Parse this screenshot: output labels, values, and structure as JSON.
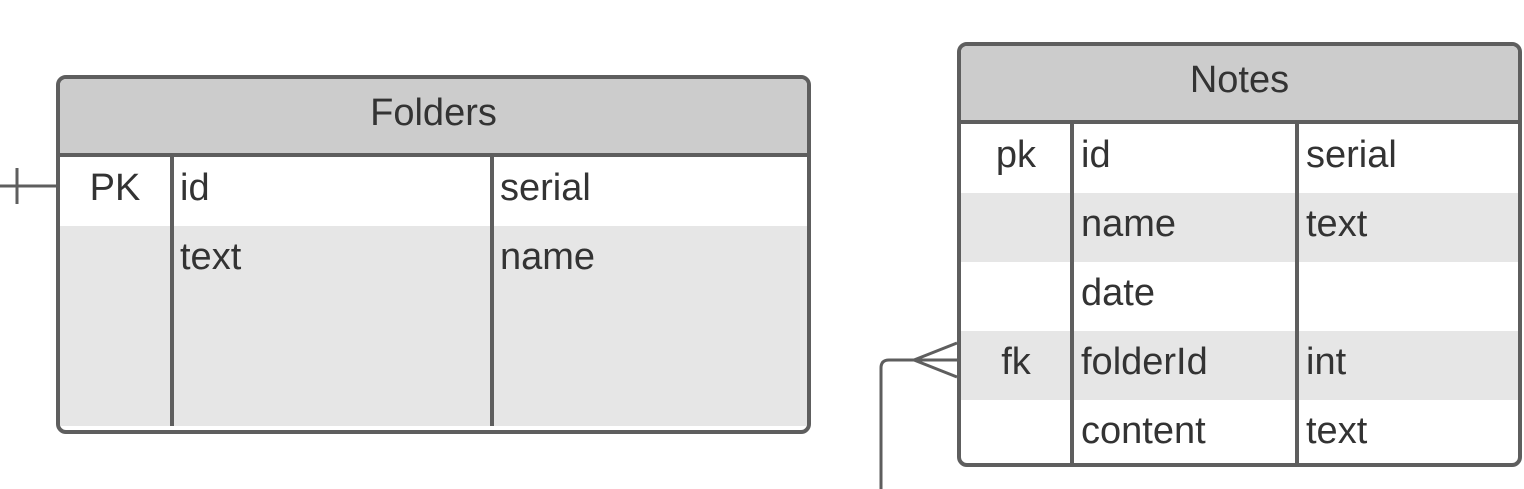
{
  "folders": {
    "title": "Folders",
    "rows": [
      {
        "key": "PK",
        "name": "id",
        "type": "serial"
      },
      {
        "key": "",
        "name": "text",
        "type": "name"
      }
    ]
  },
  "notes": {
    "title": "Notes",
    "rows": [
      {
        "key": "pk",
        "name": "id",
        "type": "serial"
      },
      {
        "key": "",
        "name": "name",
        "type": "text"
      },
      {
        "key": "",
        "name": "date",
        "type": ""
      },
      {
        "key": "fk",
        "name": "folderId",
        "type": "int"
      },
      {
        "key": "",
        "name": "content",
        "type": "text"
      }
    ]
  },
  "relationship": {
    "from": "folders.id",
    "to": "notes.folderId",
    "from_cardinality": "one",
    "to_cardinality": "many"
  },
  "colors": {
    "border": "#5e5e5e",
    "header_fill": "#cccccc",
    "shaded_row": "#e6e6e6",
    "text": "#333333"
  }
}
